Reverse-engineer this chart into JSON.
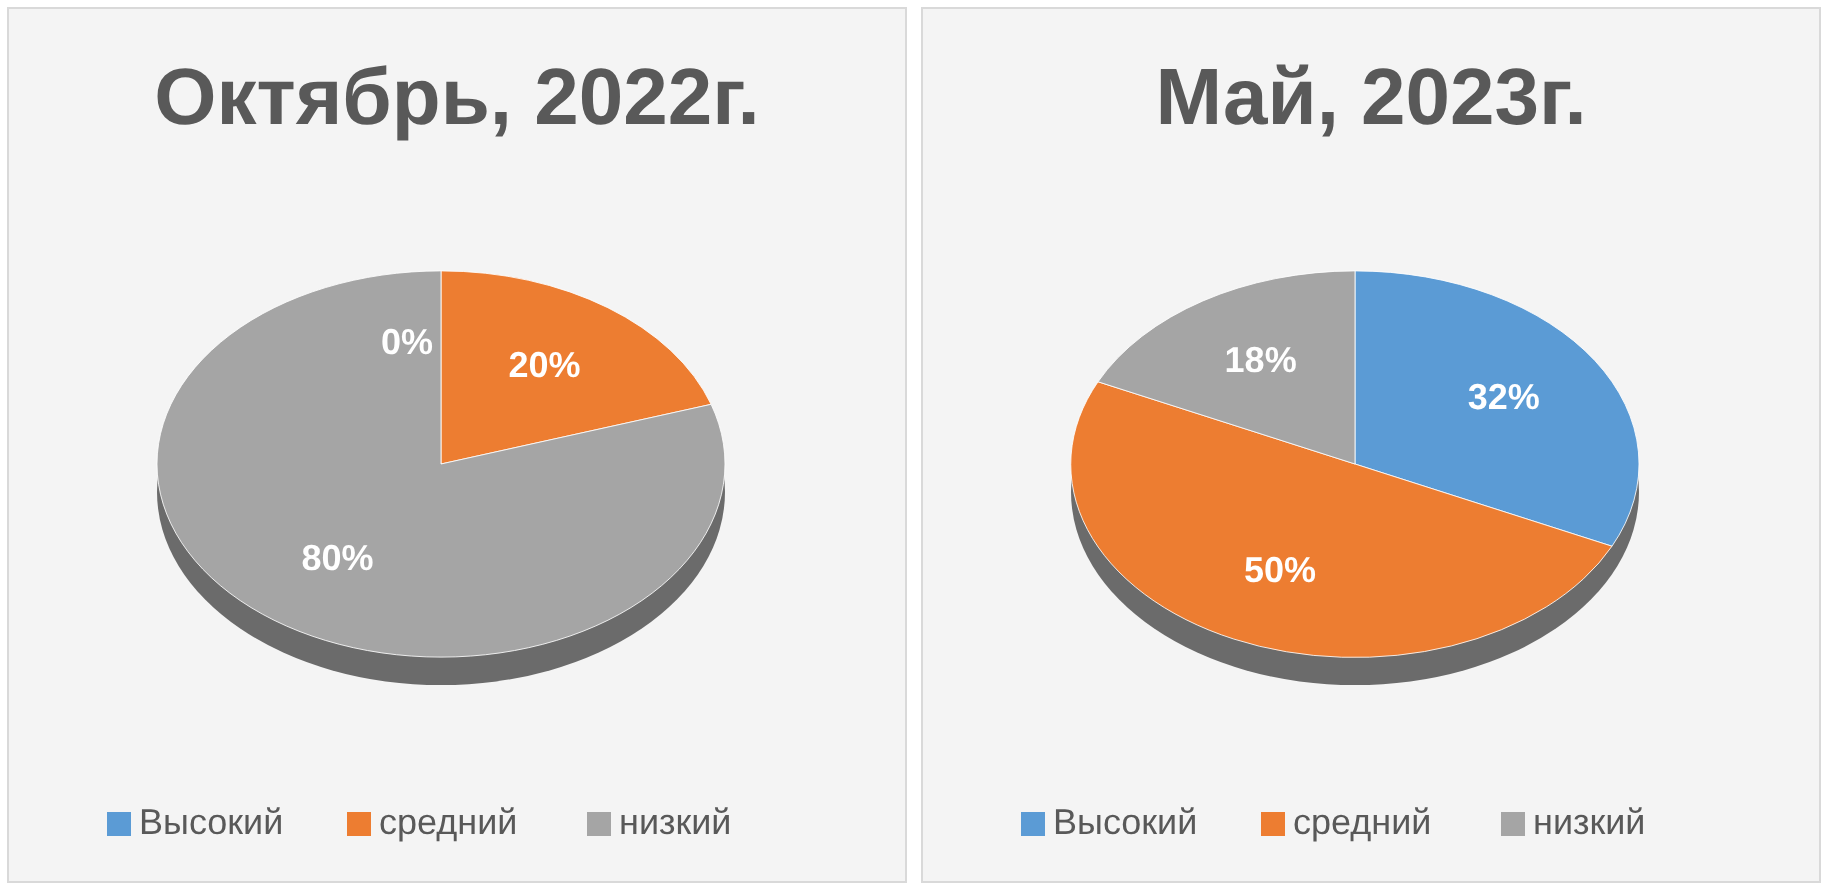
{
  "chart_data": [
    {
      "type": "pie",
      "title": "Октябрь, 2022г.",
      "categories": [
        "Высокий",
        "средний",
        "низкий"
      ],
      "values": [
        0,
        20,
        80
      ],
      "value_labels": [
        "0%",
        "20%",
        "80%"
      ],
      "colors": [
        "#5b9bd5",
        "#ed7d31",
        "#a5a5a5"
      ],
      "legend": "bottom"
    },
    {
      "type": "pie",
      "title": "Май, 2023г.",
      "categories": [
        "Высокий",
        "средний",
        "низкий"
      ],
      "values": [
        32,
        50,
        18
      ],
      "value_labels": [
        "32%",
        "50%",
        "18%"
      ],
      "colors": [
        "#5b9bd5",
        "#ed7d31",
        "#a5a5a5"
      ],
      "legend": "bottom"
    }
  ]
}
